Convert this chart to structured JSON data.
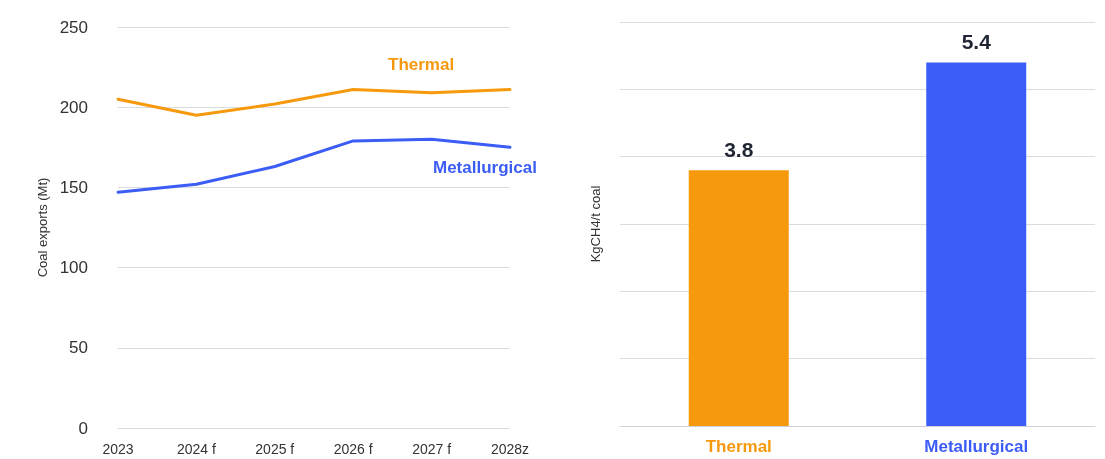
{
  "chart_data": [
    {
      "type": "line",
      "ylabel": "Coal exports (Mt)",
      "categories": [
        "2023",
        "2024 f",
        "2025 f",
        "2026 f",
        "2027 f",
        "2028z"
      ],
      "series": [
        {
          "name": "Thermal",
          "color": "#f7990c",
          "values": [
            205,
            195,
            202,
            211,
            209,
            211
          ]
        },
        {
          "name": "Metallurgical",
          "color": "#3b5cf5",
          "values": [
            147,
            152,
            163,
            179,
            180,
            175
          ]
        }
      ],
      "ylim": [
        0,
        250
      ],
      "yticks": [
        0,
        50,
        100,
        150,
        200,
        250
      ],
      "grid": "y",
      "legend": false,
      "marker": "none",
      "line_style": "solid"
    },
    {
      "type": "bar",
      "ylabel": "KgCH4/t coal",
      "categories": [
        "Thermal",
        "Metallurgical"
      ],
      "values": [
        3.8,
        5.4
      ],
      "colors": [
        "#f7990c",
        "#3b5cf5"
      ],
      "ylim": [
        0,
        6
      ],
      "yticks": [
        {
          "value": 0,
          "label": null
        },
        {
          "value": 1,
          "label": null
        },
        {
          "value": 2,
          "label": null
        },
        {
          "value": 3,
          "label": null
        },
        {
          "value": 4,
          "label": null
        },
        {
          "value": 5,
          "label": null
        },
        {
          "value": 6,
          "label": null
        }
      ],
      "grid": "y",
      "tick_labels": "x",
      "data_labels": true
    }
  ]
}
